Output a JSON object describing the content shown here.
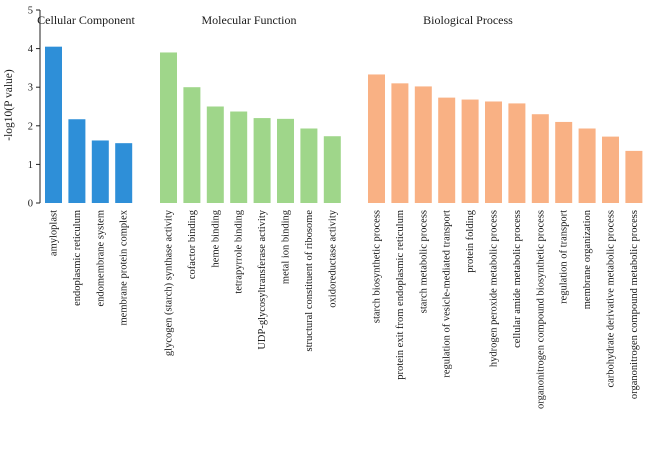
{
  "chart_data": {
    "type": "bar",
    "ylabel": "-log10(P value)",
    "ylim": [
      0,
      5
    ],
    "yticks": [
      0,
      1,
      2,
      3,
      4,
      5
    ],
    "grid": false,
    "legend": "none",
    "groups": [
      {
        "name": "Cellular Component",
        "color": "#2e8fd8",
        "categories": [
          "amyloplast",
          "endoplasmic reticulum",
          "endomembrane system",
          "membrane protein complex"
        ],
        "values": [
          4.05,
          2.17,
          1.62,
          1.55
        ]
      },
      {
        "name": "Molecular Function",
        "color": "#9fd68a",
        "categories": [
          "glycogen (starch) synthase activity",
          "cofactor binding",
          "heme binding",
          "tetrapyrrole binding",
          "UDP-glycosyltransferase activity",
          "metal ion binding",
          "structural constituent of ribosome",
          "oxidoreductase activity"
        ],
        "values": [
          3.9,
          3.0,
          2.5,
          2.37,
          2.2,
          2.18,
          1.93,
          1.73
        ]
      },
      {
        "name": "Biological Process",
        "color": "#f9b184",
        "categories": [
          "starch biosynthetic process",
          "protein exit from endoplasmic reticulum",
          "starch metabolic process",
          "regulation of vesicle-mediated transport",
          "protein folding",
          "hydrogen peroxide metabolic process",
          "cellular amide metabolic process",
          "organonitrogen compound biosynthetic process",
          "regulation of transport",
          "membrane organization",
          "carbohydrate derivative metabolic process",
          "organonitrogen compound metabolic process"
        ],
        "values": [
          3.33,
          3.1,
          3.02,
          2.73,
          2.68,
          2.63,
          2.58,
          2.3,
          2.1,
          1.93,
          1.72,
          1.35
        ]
      }
    ]
  }
}
